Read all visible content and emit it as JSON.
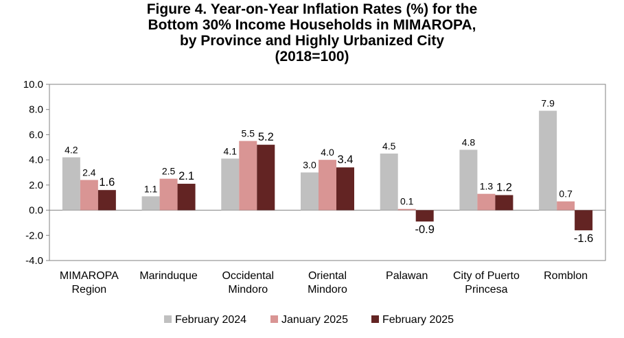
{
  "chart_data": {
    "type": "bar",
    "title_lines": [
      "Figure 4. Year-on-Year Inflation Rates (%) for the",
      "Bottom 30% Income Households in MIMAROPA,",
      "by Province and Highly Urbanized City",
      "(2018=100)"
    ],
    "categories": [
      [
        "MIMAROPA",
        "Region"
      ],
      [
        "Marinduque"
      ],
      [
        "Occidental",
        "Mindoro"
      ],
      [
        "Oriental",
        "Mindoro"
      ],
      [
        "Palawan"
      ],
      [
        "City of Puerto",
        "Princesa"
      ],
      [
        "Romblon"
      ]
    ],
    "series": [
      {
        "name": "February 2024",
        "color": "#c0c0c0",
        "values": [
          4.2,
          1.1,
          4.1,
          3.0,
          4.5,
          4.8,
          7.9
        ],
        "labels": [
          "4.2",
          "1.1",
          "4.1",
          "3.0",
          "4.5",
          "4.8",
          "7.9"
        ]
      },
      {
        "name": "January 2025",
        "color": "#d99594",
        "values": [
          2.4,
          2.5,
          5.5,
          4.0,
          0.1,
          1.3,
          0.7
        ],
        "labels": [
          "2.4",
          "2.5",
          "5.5",
          "4.0",
          "0.1",
          "1.3",
          "0.7"
        ]
      },
      {
        "name": "February 2025",
        "color": "#632423",
        "values": [
          1.6,
          2.1,
          5.2,
          3.4,
          -0.9,
          1.2,
          -1.6
        ],
        "labels": [
          "1.6",
          "2.1",
          "5.2",
          "3.4",
          "-0.9",
          "1.2",
          "-1.6"
        ]
      }
    ],
    "ylim": [
      -4.0,
      10.0
    ],
    "yticks": [
      "10.0",
      "8.0",
      "6.0",
      "4.0",
      "2.0",
      "0.0",
      "-2.0",
      "-4.0"
    ],
    "ytick_values": [
      10,
      8,
      6,
      4,
      2,
      0,
      -2,
      -4
    ],
    "grid": false,
    "legend_position": "bottom"
  }
}
